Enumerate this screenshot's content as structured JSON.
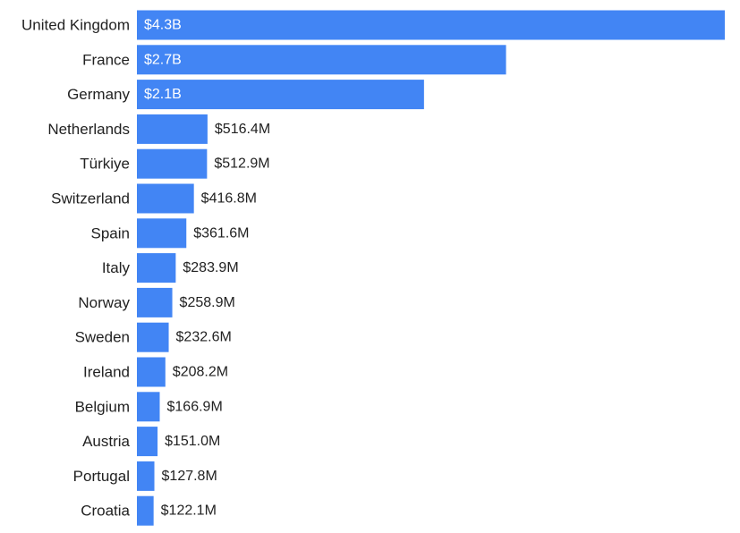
{
  "chart_data": {
    "type": "bar",
    "orientation": "horizontal",
    "title": "",
    "xlabel": "",
    "ylabel": "",
    "grid": false,
    "legend": "none",
    "bar_color": "#4285f4",
    "inside_label_color": "#ffffff",
    "outside_label_color": "#222222",
    "categories": [
      "United Kingdom",
      "France",
      "Germany",
      "Netherlands",
      "Türkiye",
      "Switzerland",
      "Spain",
      "Italy",
      "Norway",
      "Sweden",
      "Ireland",
      "Belgium",
      "Austria",
      "Portugal",
      "Croatia"
    ],
    "values": [
      4.3,
      2.7,
      2.1,
      0.5164,
      0.5129,
      0.4168,
      0.3616,
      0.2839,
      0.2589,
      0.2326,
      0.2082,
      0.1669,
      0.151,
      0.1278,
      0.1221
    ],
    "value_unit": "USD billions",
    "value_labels": [
      "$4.3B",
      "$2.7B",
      "$2.1B",
      "$516.4M",
      "$512.9M",
      "$416.8M",
      "$361.6M",
      "$283.9M",
      "$258.9M",
      "$232.6M",
      "$208.2M",
      "$166.9M",
      "$151.0M",
      "$127.8M",
      "$122.1M"
    ],
    "xlim": [
      0,
      4.3
    ]
  }
}
